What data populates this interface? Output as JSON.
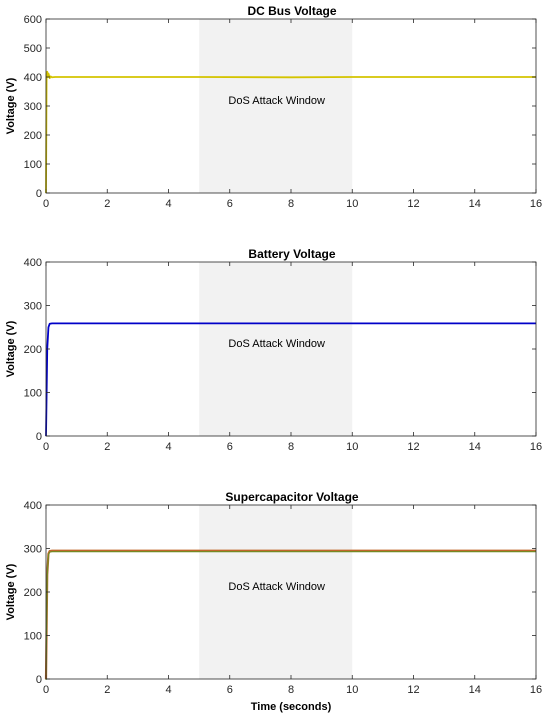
{
  "chart_data": [
    {
      "type": "line",
      "title": "DC Bus Voltage",
      "xlabel": "",
      "ylabel": "Voltage (V)",
      "xlim": [
        0,
        16
      ],
      "ylim": [
        0,
        600
      ],
      "xticks": [
        0,
        2,
        4,
        6,
        8,
        10,
        12,
        14,
        16
      ],
      "yticks": [
        0,
        100,
        200,
        300,
        400,
        500,
        600
      ],
      "color": "#d4c400",
      "series": [
        {
          "x": [
            0,
            0.02,
            0.04,
            0.06,
            0.08,
            0.1,
            0.12,
            0.15,
            0.2,
            0.3,
            0.5,
            1,
            3,
            5,
            8,
            10,
            12,
            14,
            16
          ],
          "y": [
            0,
            410,
            418,
            400,
            412,
            405,
            396,
            402,
            399,
            400,
            400,
            400,
            400,
            400,
            399,
            400,
            400,
            400,
            400
          ]
        }
      ],
      "shaded_region": {
        "x": [
          5,
          10
        ],
        "color": "#f2f2f2",
        "label": "DoS Attack Window"
      },
      "grid": false
    },
    {
      "type": "line",
      "title": "Battery Voltage",
      "xlabel": "",
      "ylabel": "Voltage (V)",
      "xlim": [
        0,
        16
      ],
      "ylim": [
        0,
        400
      ],
      "xticks": [
        0,
        2,
        4,
        6,
        8,
        10,
        12,
        14,
        16
      ],
      "yticks": [
        0,
        100,
        200,
        300,
        400
      ],
      "color": "#0000c8",
      "series": [
        {
          "x": [
            0,
            0.04,
            0.08,
            0.12,
            0.2,
            1,
            5,
            10,
            16
          ],
          "y": [
            0,
            200,
            250,
            258,
            259,
            259,
            259,
            259,
            259
          ]
        }
      ],
      "shaded_region": {
        "x": [
          5,
          10
        ],
        "color": "#f2f2f2",
        "label": "DoS Attack Window"
      },
      "grid": false
    },
    {
      "type": "line",
      "title": "Supercapacitor Voltage",
      "xlabel": "Time (seconds)",
      "ylabel": "Voltage (V)",
      "xlim": [
        0,
        16
      ],
      "ylim": [
        0,
        400
      ],
      "xticks": [
        0,
        2,
        4,
        6,
        8,
        10,
        12,
        14,
        16
      ],
      "yticks": [
        0,
        100,
        200,
        300,
        400
      ],
      "color": "#c0662a",
      "color2": "#6b8e23",
      "series": [
        {
          "x": [
            0,
            0.04,
            0.08,
            0.12,
            0.2,
            1,
            5,
            10,
            16
          ],
          "y": [
            0,
            240,
            288,
            294,
            295,
            295,
            295,
            295,
            295
          ]
        }
      ],
      "shaded_region": {
        "x": [
          5,
          10
        ],
        "color": "#f2f2f2",
        "label": "DoS Attack Window"
      },
      "grid": false
    }
  ]
}
